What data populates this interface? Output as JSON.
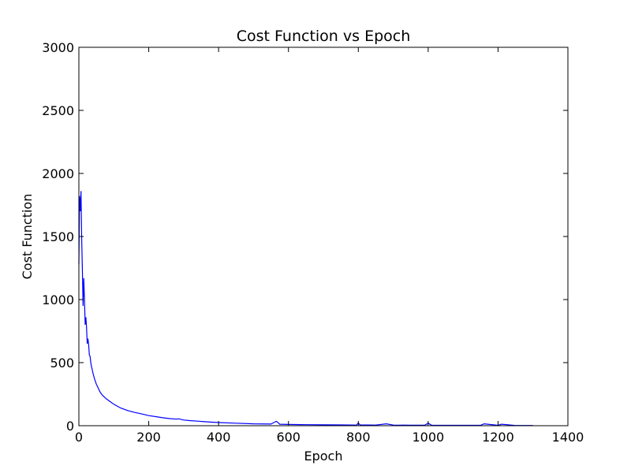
{
  "chart_data": {
    "type": "line",
    "title": "Cost Function vs Epoch",
    "xlabel": "Epoch",
    "ylabel": "Cost Function",
    "xlim": [
      0,
      1400
    ],
    "ylim": [
      0,
      3000
    ],
    "xticks": [
      0,
      200,
      400,
      600,
      800,
      1000,
      1200,
      1400
    ],
    "yticks": [
      0,
      500,
      1000,
      1500,
      2000,
      2500,
      3000
    ],
    "grid": false,
    "legend": "none",
    "series": [
      {
        "color": "#0000ff",
        "x": [
          0,
          2,
          4,
          6,
          8,
          10,
          12,
          14,
          16,
          18,
          20,
          22,
          24,
          26,
          28,
          30,
          32,
          34,
          36,
          38,
          40,
          45,
          50,
          55,
          60,
          65,
          70,
          80,
          90,
          100,
          120,
          140,
          160,
          180,
          200,
          220,
          240,
          260,
          280,
          285,
          300,
          320,
          340,
          360,
          380,
          400,
          450,
          500,
          550,
          565,
          570,
          575,
          600,
          650,
          700,
          750,
          795,
          800,
          805,
          850,
          880,
          900,
          950,
          990,
          1000,
          1010,
          1050,
          1100,
          1150,
          1160,
          1200,
          1210,
          1250,
          1300
        ],
        "y": [
          1280,
          1820,
          1700,
          1860,
          1500,
          1250,
          950,
          1170,
          1000,
          800,
          860,
          780,
          650,
          690,
          640,
          560,
          550,
          500,
          470,
          450,
          420,
          370,
          330,
          300,
          270,
          250,
          235,
          210,
          190,
          170,
          140,
          120,
          105,
          93,
          80,
          72,
          63,
          56,
          52,
          55,
          45,
          40,
          36,
          32,
          28,
          25,
          20,
          15,
          13,
          35,
          25,
          12,
          10,
          8,
          7,
          6,
          5,
          22,
          6,
          5,
          15,
          5,
          4,
          4,
          20,
          4,
          3,
          3,
          3,
          15,
          3,
          12,
          2,
          2
        ]
      }
    ]
  }
}
